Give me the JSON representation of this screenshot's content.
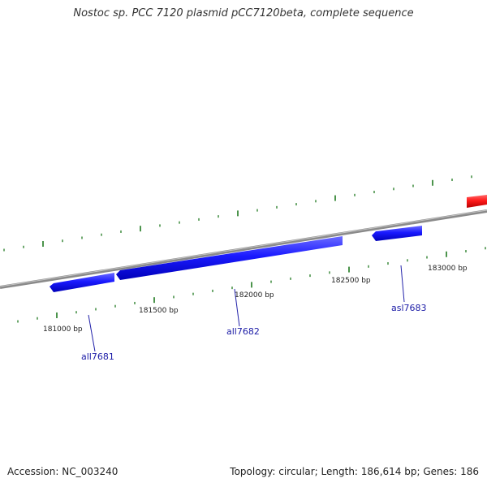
{
  "title": "Nostoc sp. PCC 7120 plasmid pCC7120beta, complete sequence",
  "footer": {
    "accession": "Accession: NC_003240",
    "summary": "Topology: circular; Length: 186,614 bp; Genes: 186"
  },
  "colors": {
    "backbone": "#8a8a8a",
    "gene_forward": "#ff0000",
    "gene_reverse": "#0000ff",
    "tick": "#1f7a1f",
    "gene_label": "#1a1aa6"
  },
  "scale_labels": [
    "181000 bp",
    "181500 bp",
    "182000 bp",
    "182500 bp",
    "183000 bp"
  ],
  "genes": [
    {
      "name": "all7681",
      "strand": "reverse"
    },
    {
      "name": "all7682",
      "strand": "reverse"
    },
    {
      "name": "asl7683",
      "strand": "reverse"
    },
    {
      "name": "",
      "strand": "forward"
    }
  ]
}
